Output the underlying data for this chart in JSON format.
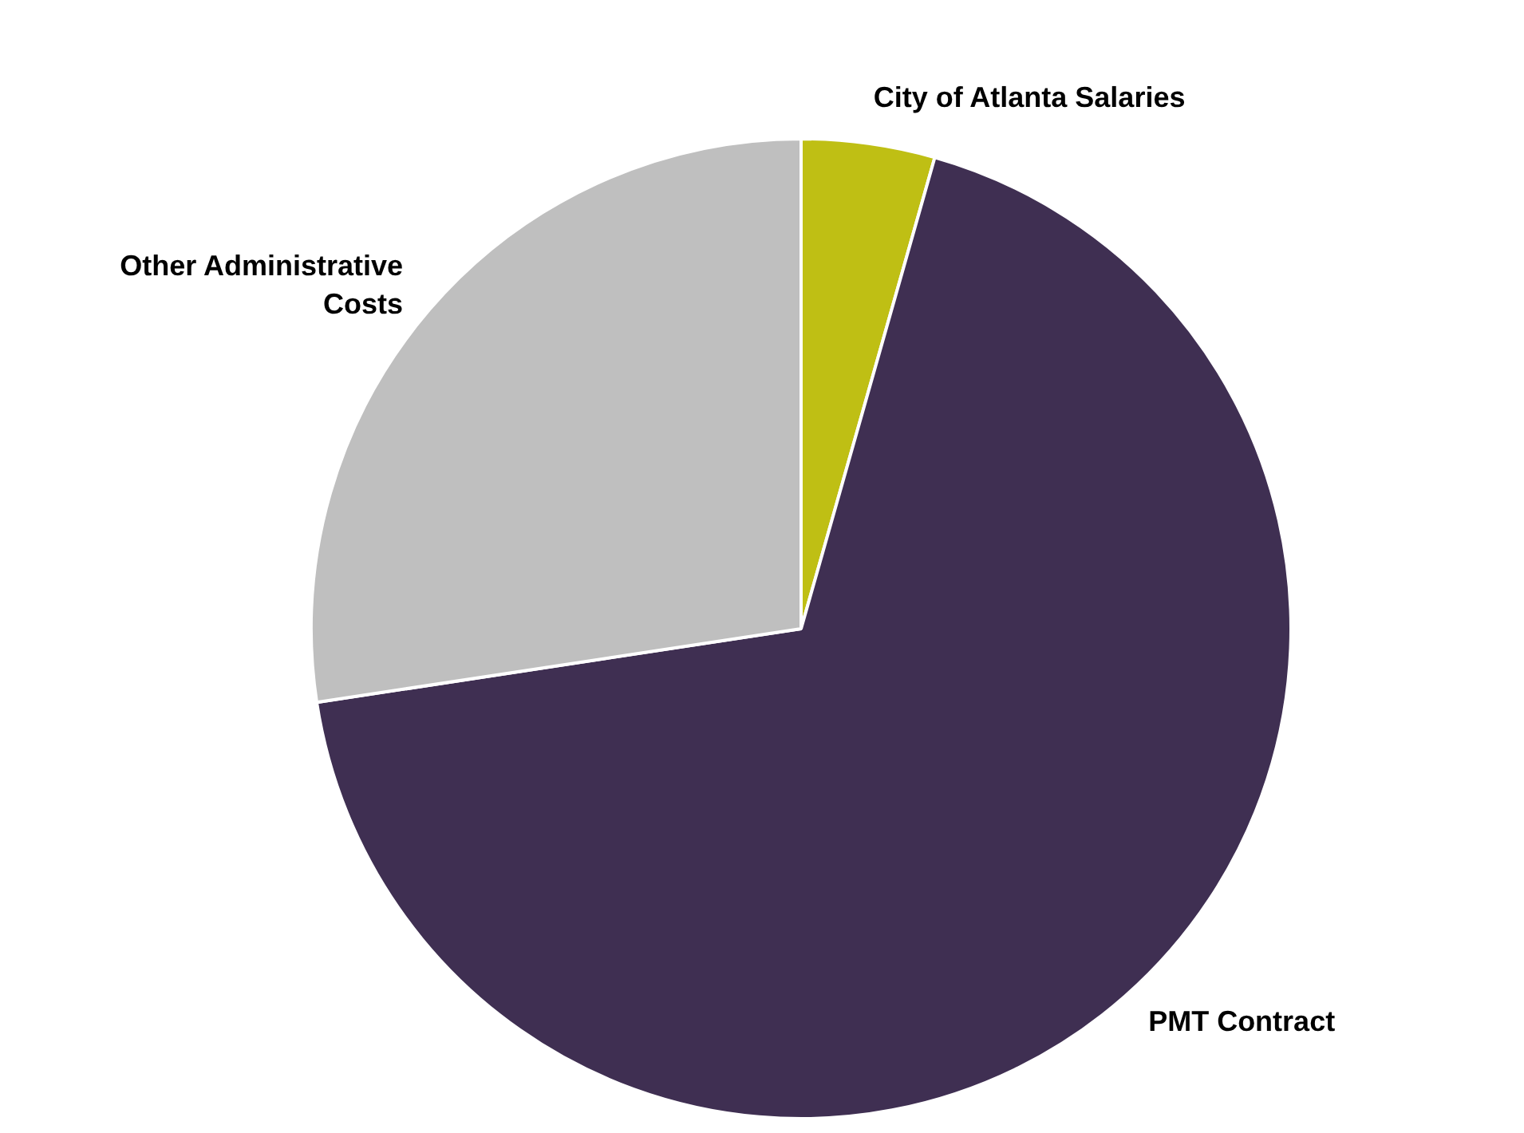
{
  "chart_data": {
    "type": "pie",
    "categories": [
      "City of Atlanta Salaries",
      "PMT Contract",
      "Other Administrative Costs"
    ],
    "values": [
      4.4,
      68.2,
      27.4
    ],
    "colors": [
      "#bfbf14",
      "#3f2f52",
      "#bfbfbf"
    ],
    "legend": false
  }
}
